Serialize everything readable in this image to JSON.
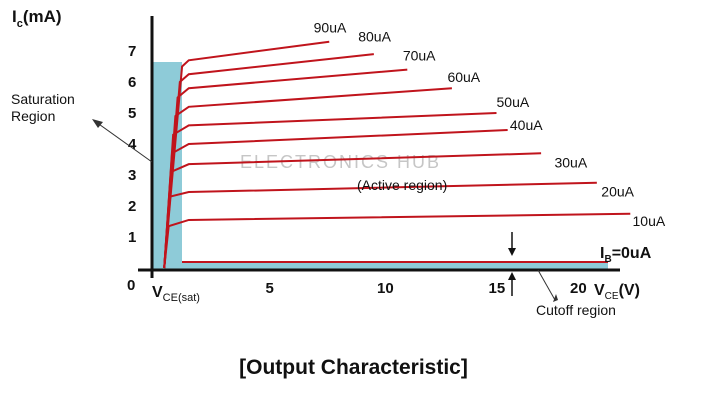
{
  "chart_data": {
    "type": "line",
    "y_axis_label": "I",
    "y_axis_sub": "c",
    "y_axis_unit": "(mA)",
    "x_axis_label": "V",
    "x_axis_sub": "CE",
    "x_axis_unit": "(V)",
    "x_ticks": [
      "5",
      "10",
      "15",
      "20"
    ],
    "y_ticks": [
      "1",
      "2",
      "3",
      "4",
      "5",
      "6",
      "7"
    ],
    "origin_label": "0",
    "vce_sat_label": "V",
    "vce_sat_sub": "CE(sat)",
    "xlim": [
      -0.5,
      21.5
    ],
    "ylim": [
      0,
      8.2
    ],
    "series": [
      {
        "name": "90uA",
        "points": [
          [
            0.1,
            0
          ],
          [
            0.9,
            6.5
          ],
          [
            1.2,
            6.7
          ],
          [
            7.5,
            7.3
          ]
        ],
        "label_at": [
          6.8,
          7.6
        ]
      },
      {
        "name": "80uA",
        "points": [
          [
            0.1,
            0
          ],
          [
            0.8,
            6.0
          ],
          [
            1.2,
            6.25
          ],
          [
            9.5,
            6.9
          ]
        ],
        "label_at": [
          8.8,
          7.3
        ]
      },
      {
        "name": "70uA",
        "points": [
          [
            0.1,
            0
          ],
          [
            0.7,
            5.5
          ],
          [
            1.2,
            5.8
          ],
          [
            11,
            6.4
          ]
        ],
        "label_at": [
          10.8,
          6.7
        ]
      },
      {
        "name": "60uA",
        "points": [
          [
            0.1,
            0
          ],
          [
            0.6,
            4.9
          ],
          [
            1.2,
            5.2
          ],
          [
            13,
            5.8
          ]
        ],
        "label_at": [
          12.8,
          6.0
        ]
      },
      {
        "name": "50uA",
        "points": [
          [
            0.1,
            0
          ],
          [
            0.5,
            4.3
          ],
          [
            1.2,
            4.6
          ],
          [
            15,
            5.0
          ]
        ],
        "label_at": [
          15,
          5.2
        ]
      },
      {
        "name": "40uA",
        "points": [
          [
            0.1,
            0
          ],
          [
            0.45,
            3.7
          ],
          [
            1.2,
            4.0
          ],
          [
            15.5,
            4.45
          ]
        ],
        "label_at": [
          15.6,
          4.45
        ]
      },
      {
        "name": "30uA",
        "points": [
          [
            0.1,
            0
          ],
          [
            0.4,
            3.1
          ],
          [
            1.2,
            3.35
          ],
          [
            17,
            3.7
          ]
        ],
        "label_at": [
          17.6,
          3.25
        ]
      },
      {
        "name": "20uA",
        "points": [
          [
            0.1,
            0
          ],
          [
            0.35,
            2.3
          ],
          [
            1.2,
            2.45
          ],
          [
            19.5,
            2.75
          ]
        ],
        "label_at": [
          19.7,
          2.3
        ]
      },
      {
        "name": "10uA",
        "points": [
          [
            0.1,
            0
          ],
          [
            0.3,
            1.35
          ],
          [
            1.2,
            1.55
          ],
          [
            21,
            1.75
          ]
        ],
        "label_at": [
          21.1,
          1.35
        ]
      }
    ],
    "ib_zero": {
      "label": "I",
      "sub": "B",
      "rest": "=0uA"
    },
    "regions": {
      "saturation": [
        "Saturation",
        "Region"
      ],
      "active": "(Active region)",
      "cutoff": "Cutoff region"
    },
    "watermark": "ELECTRONICS HUB",
    "colors": {
      "curve": "#c0141c",
      "shade": "#8ecbd8",
      "axis": "#111111",
      "ib_line": "#c0141c"
    }
  },
  "caption": "[Output Characteristic]"
}
